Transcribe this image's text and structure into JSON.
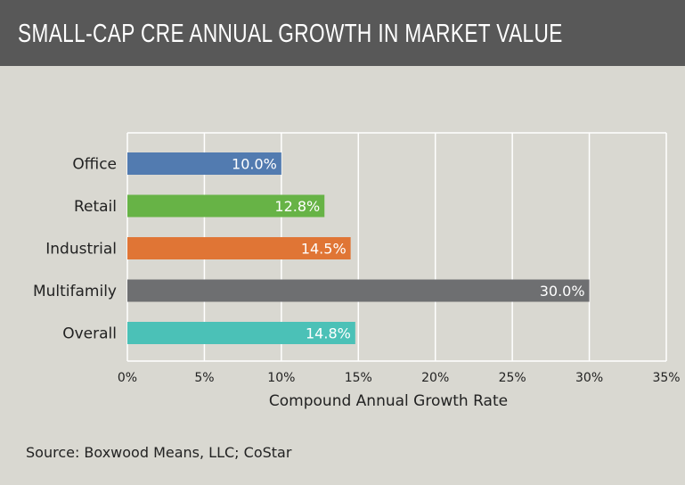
{
  "header": {
    "title": "SMALL-CAP CRE ANNUAL GROWTH IN MARKET VALUE"
  },
  "chart_data": {
    "type": "bar",
    "orientation": "horizontal",
    "categories": [
      "Office",
      "Retail",
      "Industrial",
      "Multifamily",
      "Overall"
    ],
    "values": [
      10.0,
      12.8,
      14.5,
      30.0,
      14.8
    ],
    "data_labels": [
      "10.0%",
      "12.8%",
      "14.5%",
      "30.0%",
      "14.8%"
    ],
    "colors": [
      "#527bb0",
      "#67b346",
      "#e07535",
      "#6e6f71",
      "#4bc1b7"
    ],
    "title": "SMALL-CAP CRE ANNUAL GROWTH IN MARKET VALUE",
    "xlabel": "Compound Annual Growth Rate",
    "ylabel": "",
    "xlim": [
      0,
      35
    ],
    "xticks": [
      0,
      5,
      10,
      15,
      20,
      25,
      30,
      35
    ],
    "xtick_labels": [
      "0%",
      "5%",
      "10%",
      "15%",
      "20%",
      "25%",
      "30%",
      "35%"
    ],
    "grid": true
  },
  "source": "Source: Boxwood Means, LLC; CoStar"
}
